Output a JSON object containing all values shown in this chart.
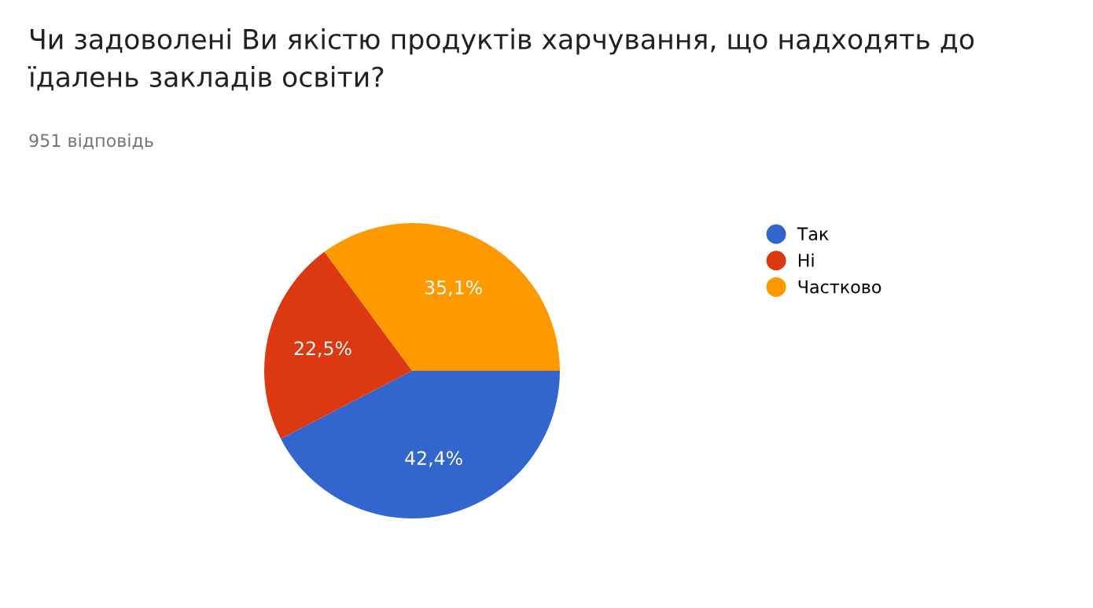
{
  "chart_data": {
    "type": "pie",
    "title": "Чи задоволені Ви якістю продуктів харчування, що надходять до їдалень закладів освіти?",
    "subtitle": "951 відповідь",
    "categories": [
      "Так",
      "Ні",
      "Частково"
    ],
    "values": [
      42.4,
      22.5,
      35.1
    ],
    "colors": [
      "#3366cc",
      "#dc3912",
      "#ff9900"
    ],
    "value_labels": [
      "42,4%",
      "22,5%",
      "35,1%"
    ],
    "legend": "right"
  }
}
